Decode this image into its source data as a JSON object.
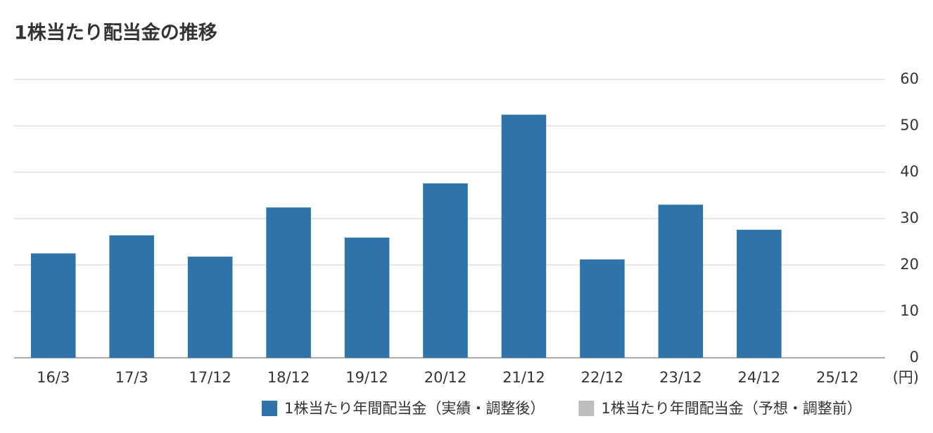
{
  "chart_data": {
    "type": "bar",
    "title": "1株当たり配当金の推移",
    "unit": "(円)",
    "categories": [
      "16/3",
      "17/3",
      "17/12",
      "18/12",
      "19/12",
      "20/12",
      "21/12",
      "22/12",
      "23/12",
      "24/12",
      "25/12"
    ],
    "series": [
      {
        "name": "1株当たり年間配当金（実績・調整後）",
        "color": "#2e74ab",
        "values": [
          22.5,
          26.4,
          21.8,
          32.4,
          25.9,
          37.6,
          52.4,
          21.2,
          33.0,
          27.6,
          null
        ]
      },
      {
        "name": "1株当たり年間配当金（予想・調整前）",
        "color": "#bdbdbd",
        "values": [
          null,
          null,
          null,
          null,
          null,
          null,
          null,
          null,
          null,
          null,
          null
        ]
      }
    ],
    "ylim": [
      0,
      60
    ],
    "yticks": [
      0,
      10,
      20,
      30,
      40,
      50,
      60
    ],
    "grid": true,
    "y_axis_side": "right",
    "legend": "bottom"
  }
}
